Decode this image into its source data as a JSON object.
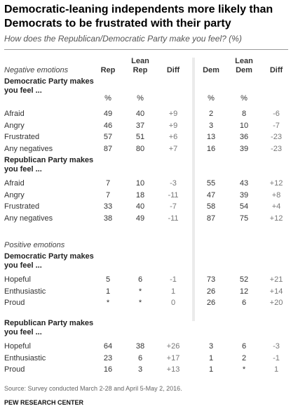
{
  "title": "Democratic-leaning independents more likely than Democrats to be frustrated with their party",
  "subtitle": "How does the Republican/Democratic Party make you feel? (%)",
  "chart_data": {
    "type": "table",
    "columns": [
      "Rep",
      "Lean Rep",
      "Diff",
      "Dem",
      "Lean Dem",
      "Diff"
    ],
    "col_header_lines": [
      [
        "Rep"
      ],
      [
        "Lean",
        "Rep"
      ],
      [
        "Diff"
      ],
      [
        "Dem"
      ],
      [
        "Lean",
        "Dem"
      ],
      [
        "Diff"
      ]
    ],
    "neg_label": "Negative emotions",
    "pos_label": "Positive emotions",
    "pct": "%",
    "groups": [
      {
        "label_lines": [
          "Democratic Party makes",
          "you feel ..."
        ],
        "rows": [
          {
            "label": "Afraid",
            "values": [
              "49",
              "40",
              "+9",
              "2",
              "8",
              "-6"
            ]
          },
          {
            "label": "Angry",
            "values": [
              "46",
              "37",
              "+9",
              "3",
              "10",
              "-7"
            ]
          },
          {
            "label": "Frustrated",
            "values": [
              "57",
              "51",
              "+6",
              "13",
              "36",
              "-23"
            ]
          },
          {
            "label": "Any negatives",
            "values": [
              "87",
              "80",
              "+7",
              "16",
              "39",
              "-23"
            ]
          }
        ]
      },
      {
        "label_lines": [
          "Republican Party makes",
          "you feel ..."
        ],
        "rows": [
          {
            "label": "Afraid",
            "values": [
              "7",
              "10",
              "-3",
              "55",
              "43",
              "+12"
            ]
          },
          {
            "label": "Angry",
            "values": [
              "7",
              "18",
              "-11",
              "47",
              "39",
              "+8"
            ]
          },
          {
            "label": "Frustrated",
            "values": [
              "33",
              "40",
              "-7",
              "58",
              "54",
              "+4"
            ]
          },
          {
            "label": "Any negatives",
            "values": [
              "38",
              "49",
              "-11",
              "87",
              "75",
              "+12"
            ]
          }
        ]
      },
      {
        "label_lines": [
          "Democratic Party makes",
          "you feel ..."
        ],
        "rows": [
          {
            "label": "Hopeful",
            "values": [
              "5",
              "6",
              "-1",
              "73",
              "52",
              "+21"
            ]
          },
          {
            "label": "Enthusiastic",
            "values": [
              "1",
              "*",
              "1",
              "26",
              "12",
              "+14"
            ]
          },
          {
            "label": "Proud",
            "values": [
              "*",
              "*",
              "0",
              "26",
              "6",
              "+20"
            ]
          }
        ]
      },
      {
        "label_lines": [
          "Republican Party makes",
          "you feel ..."
        ],
        "rows": [
          {
            "label": "Hopeful",
            "values": [
              "64",
              "38",
              "+26",
              "3",
              "6",
              "-3"
            ]
          },
          {
            "label": "Enthusiastic",
            "values": [
              "23",
              "6",
              "+17",
              "1",
              "2",
              "-1"
            ]
          },
          {
            "label": "Proud",
            "values": [
              "16",
              "3",
              "+13",
              "1",
              "*",
              "1"
            ]
          }
        ]
      }
    ]
  },
  "source": "Source: Survey conducted March 2-28 and April 5-May 2, 2016.",
  "brand": "PEW RESEARCH CENTER"
}
